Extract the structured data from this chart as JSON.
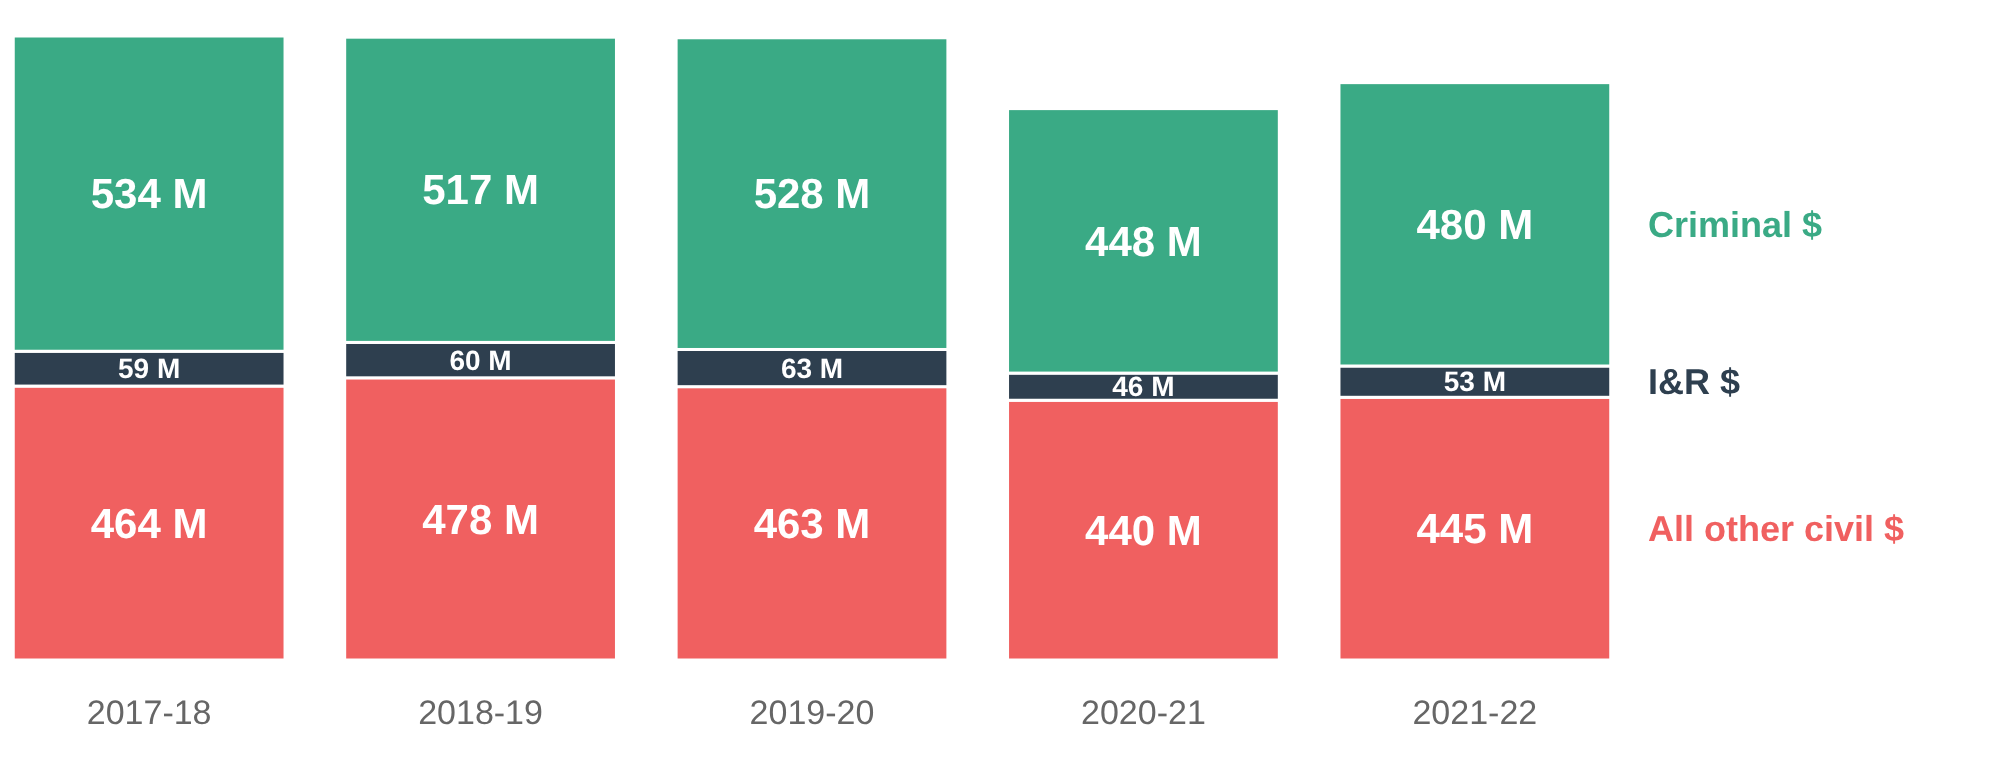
{
  "chart_data": {
    "type": "bar",
    "stacked": true,
    "legend": "right",
    "categories": [
      "2017-18",
      "2018-19",
      "2019-20",
      "2020-21",
      "2021-22"
    ],
    "series": [
      {
        "name": "All other civil $",
        "color": "#f06060",
        "values": [
          464,
          478,
          463,
          440,
          445
        ],
        "value_labels": [
          "464 M",
          "478 M",
          "463 M",
          "440 M",
          "445 M"
        ]
      },
      {
        "name": "I&R $",
        "color": "#2e3f4f",
        "values": [
          59,
          60,
          63,
          46,
          53
        ],
        "value_labels": [
          "59 M",
          "60 M",
          "63 M",
          "46 M",
          "53 M"
        ]
      },
      {
        "name": "Criminal $",
        "color": "#3aaa85",
        "values": [
          534,
          517,
          528,
          448,
          480
        ],
        "value_labels": [
          "534 M",
          "517 M",
          "528 M",
          "448 M",
          "480 M"
        ]
      }
    ]
  }
}
